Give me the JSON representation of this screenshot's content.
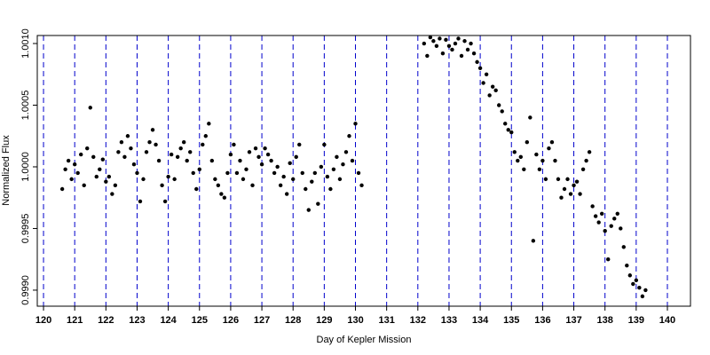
{
  "chart_data": {
    "type": "scatter",
    "x_label": "Day of Kepler Mission",
    "y_label": "Normalized Flux",
    "xlim": [
      119.8,
      140.74
    ],
    "ylim": [
      0.99887,
      1.001065
    ],
    "xticks": [
      120,
      121,
      122,
      123,
      124,
      125,
      126,
      127,
      128,
      129,
      130,
      131,
      132,
      133,
      134,
      135,
      136,
      137,
      138,
      139,
      140
    ],
    "yticks": [
      {
        "value": 0.999,
        "label": "0.9990"
      },
      {
        "value": 0.9995,
        "label": "0.9995"
      },
      {
        "value": 1.0,
        "label": "1.0000"
      },
      {
        "value": 1.0005,
        "label": "1.0005"
      },
      {
        "value": 1.001,
        "label": "1.0010"
      }
    ],
    "grid": true,
    "grid_color": "#0000cc",
    "series": [
      {
        "color": "#000000",
        "x": [
          120.6,
          120.7,
          120.8,
          120.9,
          121.0,
          121.1,
          121.2,
          121.3,
          121.4,
          121.5,
          121.6,
          121.7,
          121.8,
          121.9,
          122.0,
          122.1,
          122.2,
          122.3,
          122.4,
          122.5,
          122.6,
          122.7,
          122.8,
          122.9,
          123.0,
          123.1,
          123.2,
          123.3,
          123.4,
          123.5,
          123.6,
          123.7,
          123.8,
          123.9,
          124.0,
          124.1,
          124.2,
          124.3,
          124.4,
          124.5,
          124.6,
          124.7,
          124.8,
          124.9,
          125.0,
          125.1,
          125.2,
          125.3,
          125.4,
          125.5,
          125.6,
          125.7,
          125.8,
          125.9,
          126.0,
          126.1,
          126.2,
          126.3,
          126.4,
          126.5,
          126.6,
          126.7,
          126.8,
          126.9,
          127.0,
          127.1,
          127.2,
          127.3,
          127.4,
          127.5,
          127.6,
          127.7,
          127.8,
          127.9,
          128.0,
          128.1,
          128.2,
          128.3,
          128.4,
          128.5,
          128.6,
          128.7,
          128.8,
          128.9,
          129.0,
          129.1,
          129.2,
          129.3,
          129.4,
          129.5,
          129.6,
          129.7,
          129.8,
          129.9,
          130.0,
          130.1,
          130.2,
          132.2,
          132.3,
          132.4,
          132.5,
          132.6,
          132.7,
          132.8,
          132.9,
          133.0,
          133.1,
          133.2,
          133.3,
          133.4,
          133.5,
          133.6,
          133.7,
          133.8,
          133.9,
          134.0,
          134.1,
          134.2,
          134.3,
          134.4,
          134.5,
          134.6,
          134.7,
          134.8,
          134.9,
          135.0,
          135.1,
          135.2,
          135.3,
          135.4,
          135.5,
          135.6,
          135.7,
          135.8,
          135.9,
          136.0,
          136.1,
          136.2,
          136.3,
          136.4,
          136.5,
          136.6,
          136.7,
          136.8,
          136.9,
          137.0,
          137.1,
          137.2,
          137.3,
          137.4,
          137.5,
          137.6,
          137.7,
          137.8,
          137.9,
          138.0,
          138.1,
          138.2,
          138.3,
          138.4,
          138.5,
          138.6,
          138.7,
          138.8,
          138.9,
          139.0,
          139.1,
          139.2,
          139.3
        ],
        "values": [
          0.99982,
          0.99998,
          1.00005,
          0.9999,
          1.00002,
          0.99995,
          1.0001,
          0.99985,
          1.00015,
          1.00048,
          1.00008,
          0.99992,
          0.99998,
          1.00006,
          0.99988,
          0.99992,
          0.99978,
          0.99985,
          1.00012,
          1.0002,
          1.00008,
          1.00025,
          1.00015,
          1.00002,
          0.99995,
          0.99972,
          0.9999,
          1.00012,
          1.0002,
          1.0003,
          1.00018,
          1.00005,
          0.99985,
          0.99972,
          0.99992,
          1.0001,
          0.9999,
          1.00008,
          1.00015,
          1.0002,
          1.00005,
          1.00012,
          0.99995,
          0.99982,
          0.99998,
          1.00018,
          1.00025,
          1.00035,
          1.00005,
          0.9999,
          0.99985,
          0.99978,
          0.99975,
          0.99995,
          1.0001,
          1.00018,
          0.99995,
          1.00005,
          0.9999,
          0.99998,
          1.00012,
          0.99985,
          1.00015,
          1.00008,
          1.00002,
          1.00015,
          1.0001,
          1.00005,
          0.99995,
          1.0,
          0.99985,
          0.99992,
          0.99978,
          1.00003,
          0.9999,
          1.00008,
          1.00018,
          0.99995,
          0.99982,
          0.99965,
          0.99988,
          0.99995,
          0.9997,
          1.0,
          1.00018,
          0.99992,
          0.99982,
          0.99998,
          1.00008,
          0.9999,
          1.00002,
          1.00012,
          1.00025,
          1.00005,
          1.00035,
          0.99995,
          0.99985,
          1.001,
          1.0009,
          1.00105,
          1.00102,
          1.00098,
          1.00104,
          1.00092,
          1.00103,
          1.00098,
          1.00095,
          1.001,
          1.00104,
          1.0009,
          1.00102,
          1.00095,
          1.001,
          1.00092,
          1.00085,
          1.0008,
          1.00068,
          1.00075,
          1.00058,
          1.00065,
          1.00062,
          1.0005,
          1.00045,
          1.00035,
          1.0003,
          1.00028,
          1.00012,
          1.00005,
          1.00008,
          0.99998,
          1.0002,
          1.0004,
          0.9994,
          1.0001,
          0.99998,
          1.00005,
          0.9999,
          1.00015,
          1.0002,
          1.00005,
          0.9999,
          0.99975,
          0.99982,
          0.9999,
          0.99978,
          0.99985,
          0.99988,
          0.99978,
          0.99998,
          1.00005,
          1.00012,
          0.99968,
          0.9996,
          0.99955,
          0.99962,
          0.99948,
          0.99925,
          0.99952,
          0.99958,
          0.99962,
          0.9995,
          0.99935,
          0.9992,
          0.99912,
          0.99905,
          0.99908,
          0.99902,
          0.99895,
          0.999
        ]
      }
    ]
  }
}
